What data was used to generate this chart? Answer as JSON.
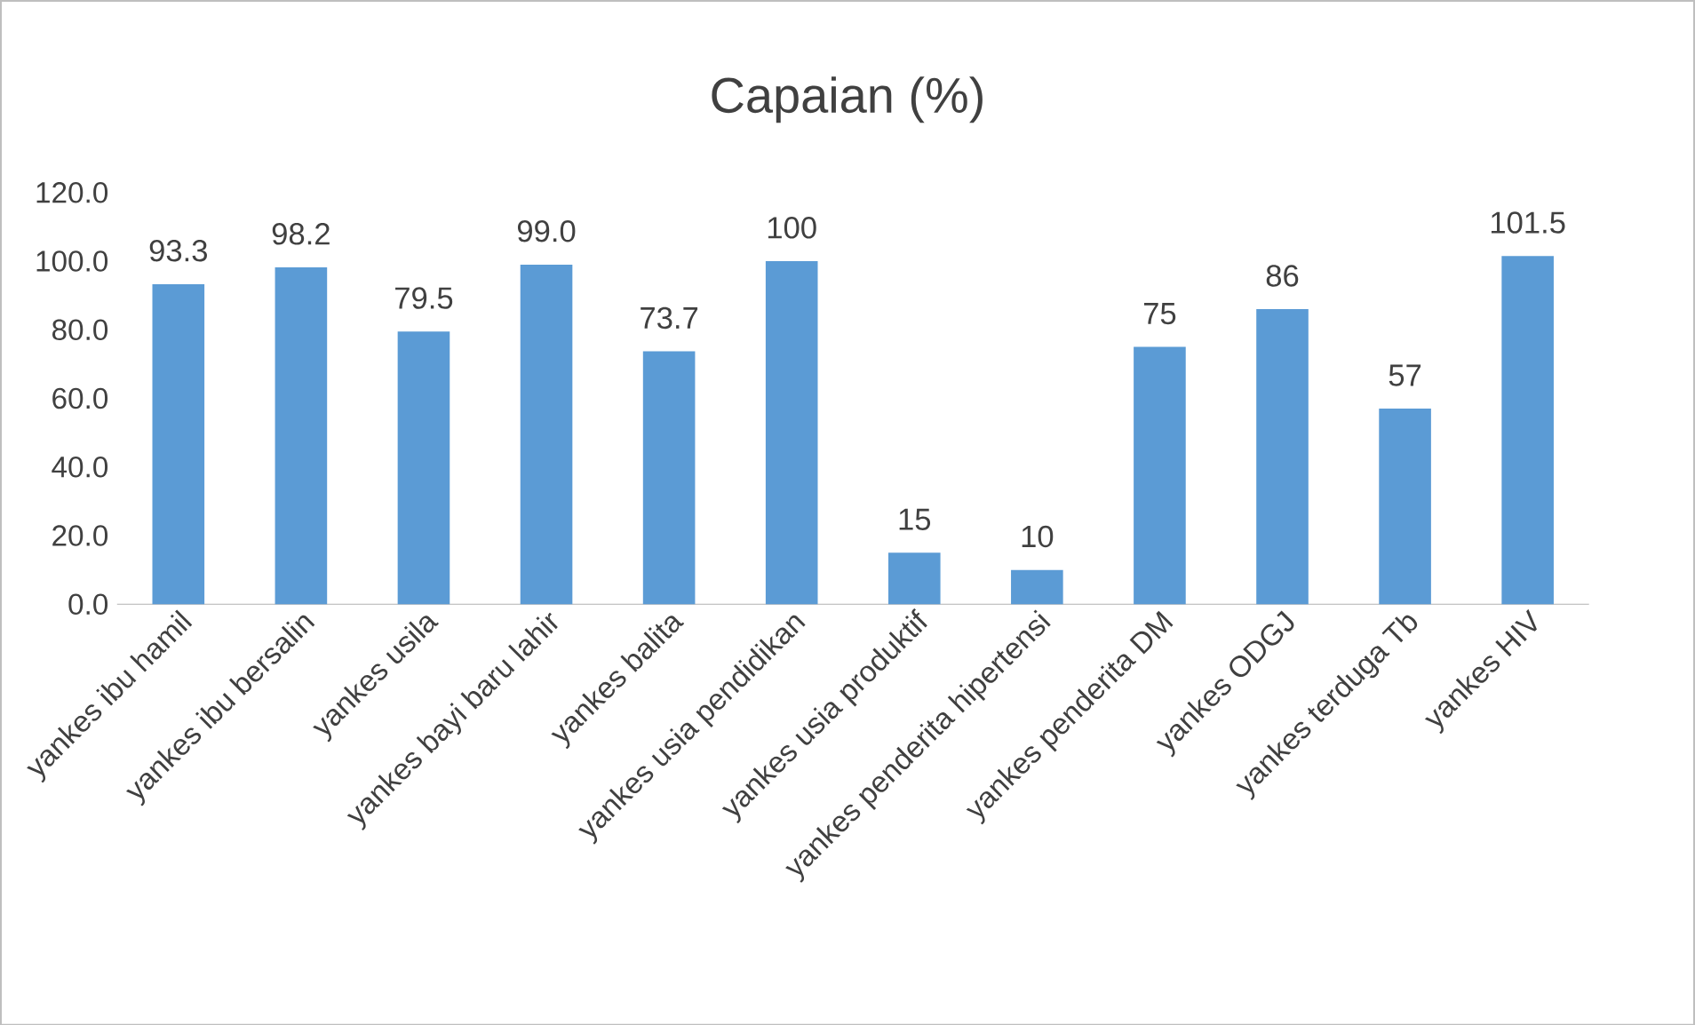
{
  "chart_data": {
    "type": "bar",
    "title": "Capaian (%)",
    "categories": [
      "yankes ibu hamil",
      "yankes ibu bersalin",
      "yankes usila",
      "yankes bayi baru lahir",
      "yankes balita",
      "yankes usia pendidikan",
      "yankes usia produktif",
      "yankes penderita hipertensi",
      "yankes penderita DM",
      "yankes ODGJ",
      "yankes terduga Tb",
      "yankes HIV"
    ],
    "values": [
      93.3,
      98.2,
      79.5,
      99.0,
      73.7,
      100,
      15,
      10,
      75,
      86,
      57,
      101.5
    ],
    "value_labels": [
      "93.3",
      "98.2",
      "79.5",
      "99.0",
      "73.7",
      "100",
      "15",
      "10",
      "75",
      "86",
      "57",
      "101.5"
    ],
    "color": "#5b9bd5",
    "ylim": [
      0,
      120
    ],
    "yticks": [
      {
        "value": 0,
        "label": "0.0"
      },
      {
        "value": 20,
        "label": "20.0"
      },
      {
        "value": 40,
        "label": "40.0"
      },
      {
        "value": 60,
        "label": "60.0"
      },
      {
        "value": 80,
        "label": "80.0"
      },
      {
        "value": 100,
        "label": "100.0"
      },
      {
        "value": 120,
        "label": "120.0"
      }
    ]
  }
}
